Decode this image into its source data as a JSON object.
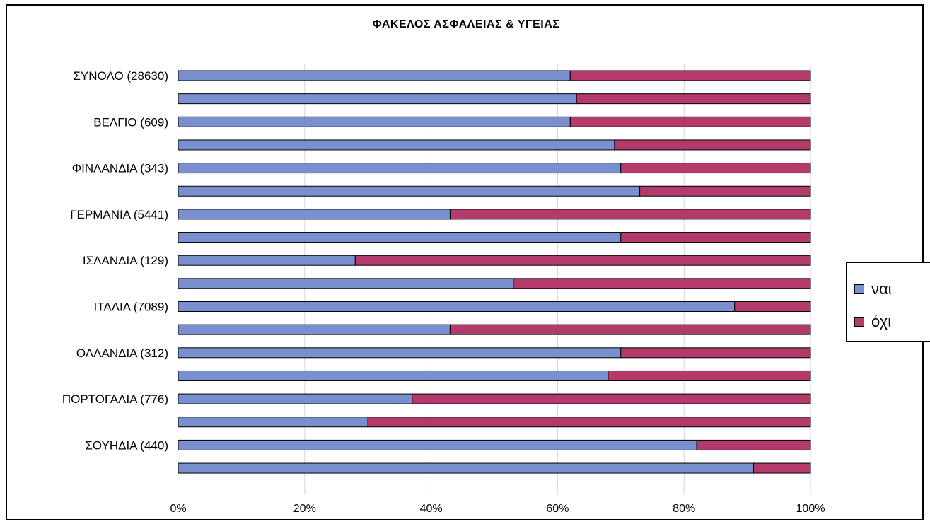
{
  "chart_data": {
    "type": "bar",
    "orientation": "horizontal",
    "stacked": "percent",
    "title": "ΦΑΚΕΛΟΣ ΑΣΦΑΛΕΙΑΣ & ΥΓΕΙΑΣ",
    "categories": [
      "ΣΥΝΟΛΟ (28630)",
      "",
      "ΒΕΛΓΙΟ (609)",
      "",
      "ΦΙΝΛΑΝΔΙΑ (343)",
      "",
      "ΓΕΡΜΑΝΙΑ (5441)",
      "",
      "ΙΣΛΑΝΔΙΑ (129)",
      "",
      "ΙΤΑΛΙΑ (7089)",
      "",
      "ΟΛΛΑΝΔΙΑ (312)",
      "",
      "ΠΟΡΤΟΓΑΛΙΑ (776)",
      "",
      "ΣΟΥΗΔΙΑ (440)",
      ""
    ],
    "series": [
      {
        "name": "ναι",
        "values": [
          62,
          63,
          62,
          69,
          70,
          73,
          43,
          70,
          28,
          53,
          88,
          43,
          70,
          68,
          37,
          30,
          82,
          91
        ]
      },
      {
        "name": "όχι",
        "values": [
          38,
          37,
          38,
          31,
          30,
          27,
          57,
          30,
          72,
          47,
          12,
          57,
          30,
          32,
          63,
          70,
          18,
          9
        ]
      }
    ],
    "colors": {
      "ναι": "#7a8fd0",
      "όχι": "#b33a6a"
    },
    "x_ticks": [
      "0%",
      "20%",
      "40%",
      "60%",
      "80%",
      "100%"
    ],
    "xlim": [
      0,
      100
    ],
    "xlabel": "",
    "ylabel": "",
    "grid": "vertical",
    "legend_position": "right"
  }
}
